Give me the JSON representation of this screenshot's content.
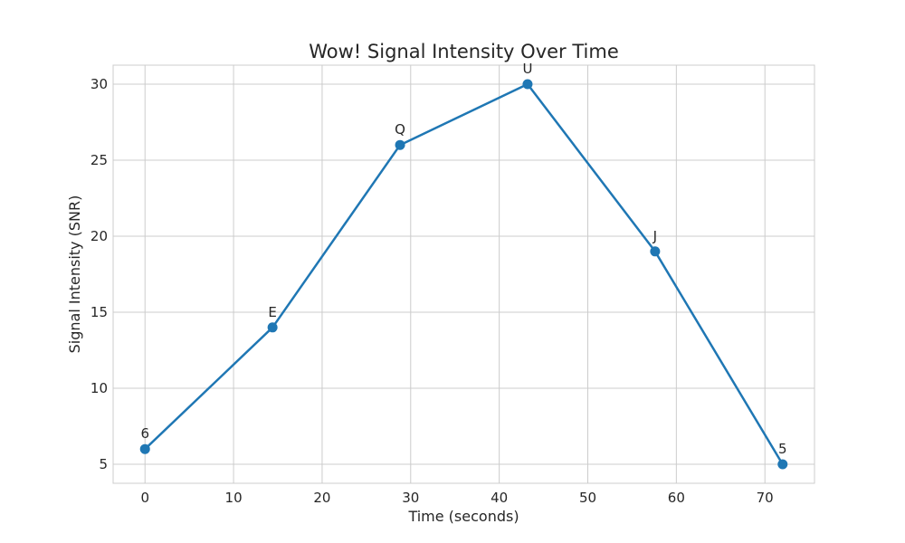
{
  "chart_data": {
    "type": "line",
    "title": "Wow! Signal Intensity Over Time",
    "xlabel": "Time (seconds)",
    "ylabel": "Signal Intensity (SNR)",
    "xlim": [
      -3.6,
      75.6
    ],
    "ylim": [
      3.75,
      31.25
    ],
    "xticks": [
      0,
      10,
      20,
      30,
      40,
      50,
      60,
      70
    ],
    "yticks": [
      5,
      10,
      15,
      20,
      25,
      30
    ],
    "grid": true,
    "series": [
      {
        "color": "#1f77b4",
        "x": [
          0,
          14.4,
          28.8,
          43.2,
          57.6,
          72
        ],
        "y": [
          6,
          14,
          26,
          30,
          19,
          5
        ],
        "labels": [
          "6",
          "E",
          "Q",
          "U",
          "J",
          "5"
        ]
      }
    ]
  }
}
